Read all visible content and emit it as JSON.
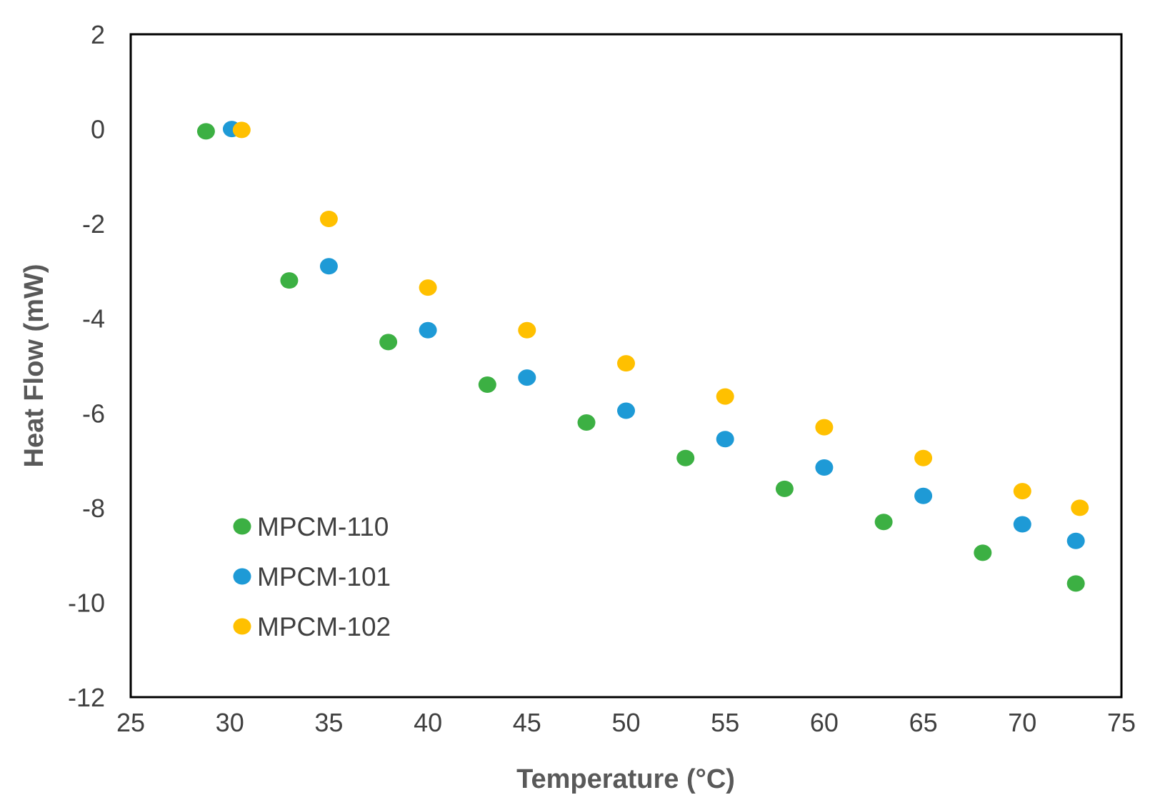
{
  "chart_data": {
    "type": "scatter",
    "title": "",
    "xlabel": "Temperature (°C)",
    "ylabel": "Heat Flow (mW)",
    "xlim": [
      25,
      75
    ],
    "ylim": [
      -12,
      2
    ],
    "xticks": [
      25,
      30,
      35,
      40,
      45,
      50,
      55,
      60,
      65,
      70,
      75
    ],
    "yticks": [
      2,
      0,
      -2,
      -4,
      -6,
      -8,
      -10,
      -12
    ],
    "grid": false,
    "legend_position": "bottom-left",
    "series": [
      {
        "name": "MPCM-110",
        "color": "#3cb043",
        "points": [
          {
            "x": 28.8,
            "y": -0.05
          },
          {
            "x": 33,
            "y": -3.2
          },
          {
            "x": 38,
            "y": -4.5
          },
          {
            "x": 43,
            "y": -5.4
          },
          {
            "x": 48,
            "y": -6.2
          },
          {
            "x": 53,
            "y": -6.95
          },
          {
            "x": 58,
            "y": -7.6
          },
          {
            "x": 63,
            "y": -8.3
          },
          {
            "x": 68,
            "y": -8.95
          },
          {
            "x": 72.7,
            "y": -9.6
          }
        ]
      },
      {
        "name": "MPCM-101",
        "color": "#1e9ad6",
        "points": [
          {
            "x": 30.1,
            "y": 0.0
          },
          {
            "x": 35,
            "y": -2.9
          },
          {
            "x": 40,
            "y": -4.25
          },
          {
            "x": 45,
            "y": -5.25
          },
          {
            "x": 50,
            "y": -5.95
          },
          {
            "x": 55,
            "y": -6.55
          },
          {
            "x": 60,
            "y": -7.15
          },
          {
            "x": 65,
            "y": -7.75
          },
          {
            "x": 70,
            "y": -8.35
          },
          {
            "x": 72.7,
            "y": -8.7
          }
        ]
      },
      {
        "name": "MPCM-102",
        "color": "#ffc000",
        "points": [
          {
            "x": 30.6,
            "y": -0.02
          },
          {
            "x": 35,
            "y": -1.9
          },
          {
            "x": 40,
            "y": -3.35
          },
          {
            "x": 45,
            "y": -4.25
          },
          {
            "x": 50,
            "y": -4.95
          },
          {
            "x": 55,
            "y": -5.65
          },
          {
            "x": 60,
            "y": -6.3
          },
          {
            "x": 65,
            "y": -6.95
          },
          {
            "x": 70,
            "y": -7.65
          },
          {
            "x": 72.9,
            "y": -8.0
          }
        ]
      }
    ]
  }
}
